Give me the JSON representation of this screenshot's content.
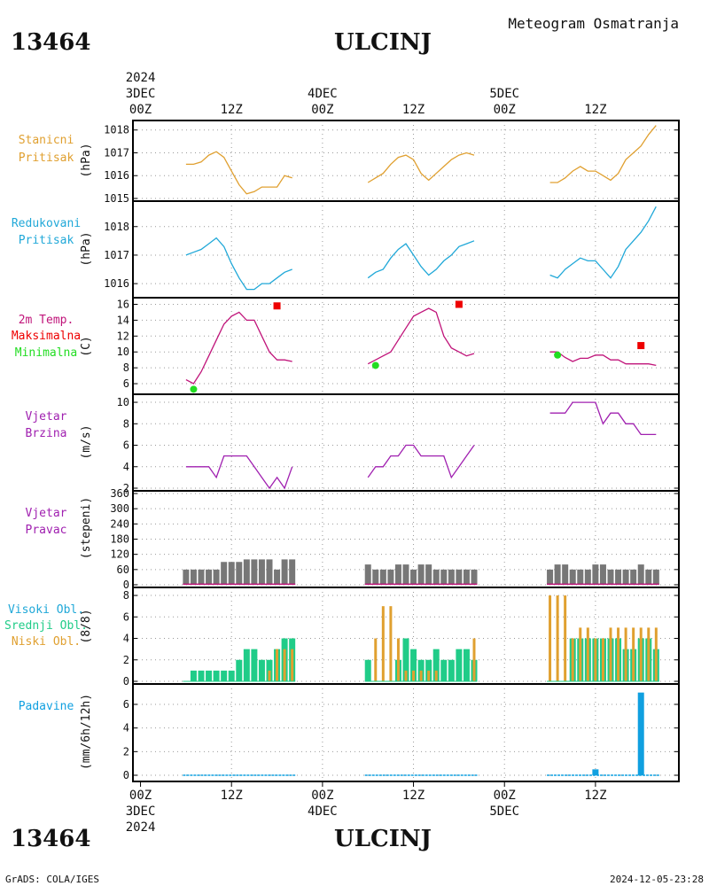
{
  "header": {
    "station_id": "13464",
    "station_name": "ULCINJ",
    "subtitle": "Meteogram Osmatranja"
  },
  "footer": {
    "credit": "GrADS: COLA/IGES",
    "timestamp": "2024-12-05-23:28"
  },
  "time_axis": {
    "year": "2024",
    "start": "2024-12-03T00Z",
    "end": "2024-12-05T23Z",
    "labels": [
      {
        "hour": 0,
        "hour_label": "00Z",
        "date_label": "3DEC"
      },
      {
        "hour": 12,
        "hour_label": "12Z"
      },
      {
        "hour": 24,
        "hour_label": "00Z",
        "date_label": "4DEC"
      },
      {
        "hour": 36,
        "hour_label": "12Z"
      },
      {
        "hour": 48,
        "hour_label": "00Z",
        "date_label": "5DEC"
      },
      {
        "hour": 60,
        "hour_label": "12Z"
      }
    ]
  },
  "colors": {
    "station_pressure": "#e0a030",
    "reduced_pressure": "#20a8d8",
    "temperature": "#c0147a",
    "tmax": "#ee0000",
    "tmin": "#22dd22",
    "wind": "#a020b0",
    "wind_dir_bar": "#777777",
    "wind_dir_base": "#c0147a",
    "high_cloud": "#20a8d8",
    "mid_cloud": "#20cc88",
    "low_cloud": "#e0a030",
    "precip": "#10a0e0"
  },
  "panels": {
    "station_pressure": {
      "label1": "Stanicni",
      "label2": "Pritisak",
      "unit": "(hPa)"
    },
    "reduced_pressure": {
      "label1": "Redukovani",
      "label2": "Pritisak",
      "unit": "(hPa)"
    },
    "temperature": {
      "label1": "2m Temp.",
      "label2": "Maksimalna",
      "label3": "Minimalna",
      "unit": "(C)"
    },
    "wind_speed": {
      "label1": "Vjetar",
      "label2": "Brzina",
      "unit": "(m/s)"
    },
    "wind_dir": {
      "label1": "Vjetar",
      "label2": "Pravac",
      "unit": "(stepeni)"
    },
    "clouds": {
      "label1": "Visoki Obl.",
      "label2": "Srednji Obl.",
      "label3": "Niski Obl.",
      "unit": "(8/8)"
    },
    "precip": {
      "label1": "Padavine",
      "unit": "(mm/6h/12h)"
    }
  },
  "chart_data": [
    {
      "type": "line",
      "name": "station_pressure",
      "ylim": [
        1015,
        1018.3
      ],
      "yticks": [
        1015,
        1016,
        1017,
        1018
      ],
      "segments": [
        {
          "x": [
            6,
            7,
            8,
            9,
            10,
            11,
            12,
            13,
            14,
            15,
            16,
            17,
            18,
            19,
            20
          ],
          "y": [
            1016.5,
            1016.5,
            1016.6,
            1016.9,
            1017.05,
            1016.8,
            1016.2,
            1015.6,
            1015.2,
            1015.3,
            1015.5,
            1015.5,
            1015.5,
            1016.0,
            1015.9
          ]
        },
        {
          "x": [
            30,
            31,
            32,
            33,
            34,
            35,
            36,
            37,
            38,
            39,
            40,
            41,
            42,
            43,
            44
          ],
          "y": [
            1015.7,
            1015.9,
            1016.1,
            1016.5,
            1016.8,
            1016.9,
            1016.7,
            1016.1,
            1015.8,
            1016.1,
            1016.4,
            1016.7,
            1016.9,
            1017.0,
            1016.9
          ]
        },
        {
          "x": [
            54,
            55,
            56,
            57,
            58,
            59,
            60,
            61,
            62,
            63,
            64,
            65,
            66,
            67,
            68
          ],
          "y": [
            1015.7,
            1015.7,
            1015.9,
            1016.2,
            1016.4,
            1016.2,
            1016.2,
            1016.0,
            1015.8,
            1016.1,
            1016.7,
            1017.0,
            1017.3,
            1017.8,
            1018.2
          ]
        }
      ]
    },
    {
      "type": "line",
      "name": "reduced_pressure",
      "ylim": [
        1015.6,
        1018.8
      ],
      "yticks": [
        1016,
        1017,
        1018
      ],
      "segments": [
        {
          "x": [
            6,
            7,
            8,
            9,
            10,
            11,
            12,
            13,
            14,
            15,
            16,
            17,
            18,
            19,
            20
          ],
          "y": [
            1017.0,
            1017.1,
            1017.2,
            1017.4,
            1017.6,
            1017.3,
            1016.7,
            1016.2,
            1015.8,
            1015.8,
            1016.0,
            1016.0,
            1016.2,
            1016.4,
            1016.5
          ]
        },
        {
          "x": [
            30,
            31,
            32,
            33,
            34,
            35,
            36,
            37,
            38,
            39,
            40,
            41,
            42,
            43,
            44
          ],
          "y": [
            1016.2,
            1016.4,
            1016.5,
            1016.9,
            1017.2,
            1017.4,
            1017.0,
            1016.6,
            1016.3,
            1016.5,
            1016.8,
            1017.0,
            1017.3,
            1017.4,
            1017.5
          ]
        },
        {
          "x": [
            54,
            55,
            56,
            57,
            58,
            59,
            60,
            61,
            62,
            63,
            64,
            65,
            66,
            67,
            68
          ],
          "y": [
            1016.3,
            1016.2,
            1016.5,
            1016.7,
            1016.9,
            1016.8,
            1016.8,
            1016.5,
            1016.2,
            1016.6,
            1017.2,
            1017.5,
            1017.8,
            1018.2,
            1018.7
          ]
        }
      ]
    },
    {
      "type": "line",
      "name": "temperature",
      "ylim": [
        5,
        16.5
      ],
      "yticks": [
        6,
        8,
        10,
        12,
        14,
        16
      ],
      "segments": [
        {
          "x": [
            6,
            7,
            8,
            9,
            10,
            11,
            12,
            13,
            14,
            15,
            16,
            17,
            18,
            19,
            20
          ],
          "y": [
            6.5,
            6.0,
            7.5,
            9.5,
            11.5,
            13.5,
            14.5,
            15.0,
            14.0,
            14.0,
            12.0,
            10.0,
            9.0,
            9.0,
            8.8
          ]
        },
        {
          "x": [
            30,
            31,
            32,
            33,
            34,
            35,
            36,
            37,
            38,
            39,
            40,
            41,
            42,
            43,
            44
          ],
          "y": [
            8.5,
            9.0,
            9.5,
            10.0,
            11.5,
            13.0,
            14.5,
            15.0,
            15.5,
            15.0,
            12.0,
            10.5,
            10.0,
            9.5,
            9.8
          ]
        },
        {
          "x": [
            54,
            55,
            56,
            57,
            58,
            59,
            60,
            61,
            62,
            63,
            64,
            65,
            66,
            67,
            68
          ],
          "y": [
            10.0,
            10.0,
            9.3,
            8.8,
            9.2,
            9.2,
            9.6,
            9.6,
            9.0,
            9.0,
            8.5,
            8.5,
            8.5,
            8.5,
            8.3
          ]
        }
      ],
      "tmax": [
        {
          "x": 18,
          "y": 15.8
        },
        {
          "x": 42,
          "y": 16.0
        },
        {
          "x": 66,
          "y": 10.8
        }
      ],
      "tmin": [
        {
          "x": 7,
          "y": 5.3
        },
        {
          "x": 31,
          "y": 8.3
        },
        {
          "x": 55,
          "y": 9.6
        }
      ]
    },
    {
      "type": "line",
      "name": "wind_speed",
      "ylim": [
        2,
        10.5
      ],
      "yticks": [
        2,
        4,
        6,
        8,
        10
      ],
      "segments": [
        {
          "x": [
            6,
            7,
            8,
            9,
            10,
            11,
            12,
            13,
            14,
            15,
            16,
            17,
            18,
            19,
            20
          ],
          "y": [
            4,
            4,
            4,
            4,
            3,
            5,
            5,
            5,
            5,
            4,
            3,
            2,
            3,
            2,
            4
          ]
        },
        {
          "x": [
            30,
            31,
            32,
            33,
            34,
            35,
            36,
            37,
            38,
            39,
            40,
            41,
            42,
            43,
            44
          ],
          "y": [
            3,
            4,
            4,
            5,
            5,
            6,
            6,
            5,
            5,
            5,
            5,
            3,
            4,
            5,
            6
          ]
        },
        {
          "x": [
            54,
            55,
            56,
            57,
            58,
            59,
            60,
            61,
            62,
            63,
            64,
            65,
            66,
            67,
            68
          ],
          "y": [
            9,
            9,
            9,
            10,
            10,
            10,
            10,
            8,
            9,
            9,
            8,
            8,
            7,
            7,
            7
          ]
        }
      ]
    },
    {
      "type": "bar",
      "name": "wind_dir",
      "ylim": [
        0,
        360
      ],
      "yticks": [
        0,
        60,
        120,
        180,
        240,
        300,
        360
      ],
      "x": [
        6,
        7,
        8,
        9,
        10,
        11,
        12,
        13,
        14,
        15,
        16,
        17,
        18,
        19,
        20,
        30,
        31,
        32,
        33,
        34,
        35,
        36,
        37,
        38,
        39,
        40,
        41,
        42,
        43,
        44,
        54,
        55,
        56,
        57,
        58,
        59,
        60,
        61,
        62,
        63,
        64,
        65,
        66,
        67,
        68
      ],
      "values": [
        60,
        60,
        60,
        60,
        60,
        90,
        90,
        90,
        100,
        100,
        100,
        100,
        60,
        100,
        100,
        80,
        60,
        60,
        60,
        80,
        80,
        60,
        80,
        80,
        60,
        60,
        60,
        60,
        60,
        60,
        60,
        80,
        80,
        60,
        60,
        60,
        80,
        80,
        60,
        60,
        60,
        60,
        80,
        60,
        60
      ]
    },
    {
      "type": "bar",
      "name": "clouds",
      "ylim": [
        0,
        8.5
      ],
      "yticks": [
        0,
        2,
        4,
        6,
        8
      ],
      "x": [
        6,
        7,
        8,
        9,
        10,
        11,
        12,
        13,
        14,
        15,
        16,
        17,
        18,
        19,
        20,
        30,
        31,
        32,
        33,
        34,
        35,
        36,
        37,
        38,
        39,
        40,
        41,
        42,
        43,
        44,
        54,
        55,
        56,
        57,
        58,
        59,
        60,
        61,
        62,
        63,
        64,
        65,
        66,
        67,
        68
      ],
      "series": [
        {
          "name": "Visoki Obl.",
          "values": [
            0,
            0,
            0,
            0,
            0,
            0,
            0,
            0,
            0,
            0,
            0,
            0,
            0,
            0,
            0,
            0,
            0,
            0,
            0,
            0,
            0,
            0,
            0,
            0,
            0,
            0,
            0,
            0,
            0,
            0,
            0,
            0,
            0,
            0,
            0,
            0,
            0,
            0,
            0,
            0,
            0,
            0,
            0,
            0,
            0
          ]
        },
        {
          "name": "Srednji Obl.",
          "values": [
            0,
            1,
            1,
            1,
            1,
            1,
            1,
            2,
            3,
            3,
            2,
            2,
            3,
            4,
            4,
            2,
            0,
            0,
            0,
            2,
            4,
            3,
            2,
            2,
            3,
            2,
            2,
            3,
            3,
            2,
            0,
            0,
            0,
            4,
            4,
            4,
            4,
            4,
            4,
            4,
            3,
            3,
            4,
            4,
            3
          ]
        },
        {
          "name": "Niski Obl.",
          "values": [
            0,
            0,
            0,
            0,
            0,
            0,
            0,
            0,
            0,
            0,
            0,
            1,
            3,
            3,
            3,
            0,
            4,
            7,
            7,
            4,
            1,
            1,
            1,
            1,
            1,
            0,
            0,
            0,
            0,
            4,
            8,
            8,
            8,
            4,
            5,
            5,
            4,
            4,
            5,
            5,
            5,
            5,
            5,
            5,
            5
          ]
        }
      ]
    },
    {
      "type": "bar",
      "name": "precip",
      "ylim": [
        -0.3,
        7.5
      ],
      "yticks": [
        0,
        2,
        4,
        6
      ],
      "bars": [
        {
          "x": 60,
          "value": 0.5
        },
        {
          "x": 66,
          "value": 7.0
        }
      ]
    }
  ]
}
